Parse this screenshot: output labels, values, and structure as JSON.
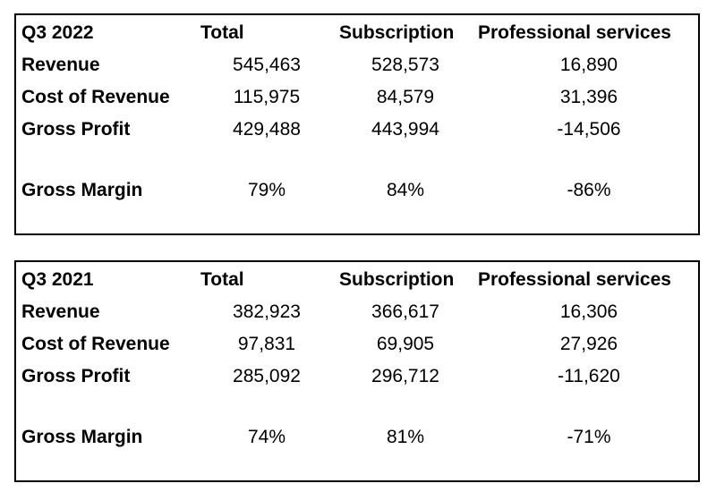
{
  "tables": [
    {
      "period": "Q3 2022",
      "headers": [
        "Total",
        "Subscription",
        "Professional services"
      ],
      "rows": [
        {
          "label": "Revenue",
          "values": [
            "545,463",
            "528,573",
            "16,890"
          ]
        },
        {
          "label": "Cost of Revenue",
          "values": [
            "115,975",
            "84,579",
            "31,396"
          ]
        },
        {
          "label": "Gross Profit",
          "values": [
            "429,488",
            "443,994",
            "-14,506"
          ]
        },
        {
          "label": "Gross Margin",
          "values": [
            "79%",
            "84%",
            "-86%"
          ]
        }
      ]
    },
    {
      "period": "Q3 2021",
      "headers": [
        "Total",
        "Subscription",
        "Professional services"
      ],
      "rows": [
        {
          "label": "Revenue",
          "values": [
            "382,923",
            "366,617",
            "16,306"
          ]
        },
        {
          "label": "Cost of Revenue",
          "values": [
            "97,831",
            "69,905",
            "27,926"
          ]
        },
        {
          "label": "Gross Profit",
          "values": [
            "285,092",
            "296,712",
            "-11,620"
          ]
        },
        {
          "label": "Gross Margin",
          "values": [
            "74%",
            "81%",
            "-71%"
          ]
        }
      ]
    }
  ]
}
